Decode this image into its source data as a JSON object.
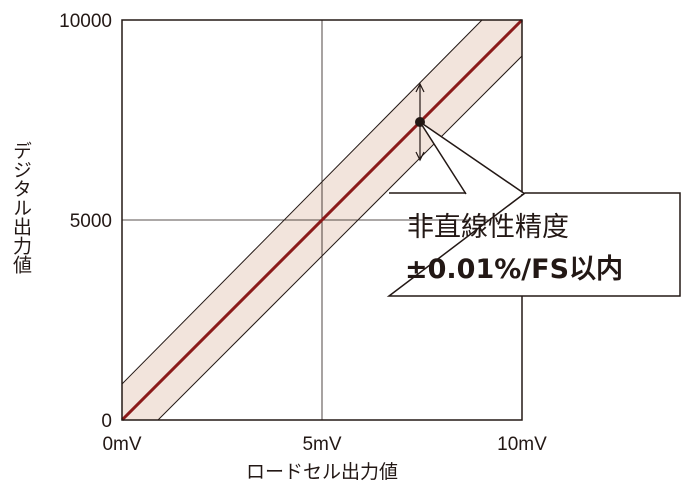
{
  "chart_data": {
    "type": "line",
    "xlabel": "ロードセル出力値",
    "ylabel": "デジタル出力値",
    "xlim": [
      0,
      10
    ],
    "ylim": [
      0,
      10000
    ],
    "x_ticks": [
      {
        "value": 0,
        "label": "0mV"
      },
      {
        "value": 5,
        "label": "5mV"
      },
      {
        "value": 10,
        "label": "10mV"
      }
    ],
    "y_ticks": [
      {
        "value": 0,
        "label": "0"
      },
      {
        "value": 5000,
        "label": "5000"
      },
      {
        "value": 10000,
        "label": "10000"
      }
    ],
    "grid": true,
    "series": [
      {
        "role": "ideal",
        "x": [
          0,
          10
        ],
        "y": [
          0,
          10000
        ],
        "color": "#8b1a1a"
      },
      {
        "role": "upper-bound",
        "x": [
          0,
          9
        ],
        "y": [
          900,
          10000
        ],
        "color": "#231815"
      },
      {
        "role": "lower-bound",
        "x": [
          0.9,
          10
        ],
        "y": [
          0,
          9100
        ],
        "color": "#231815"
      }
    ],
    "band_color": "#f2e4dc",
    "marker": {
      "x": 7.45,
      "y": 7450,
      "error_low": 6500,
      "error_high": 8400
    },
    "annotation": {
      "line1": "非直線性精度",
      "line2": "±0.01%/FS以内"
    }
  }
}
